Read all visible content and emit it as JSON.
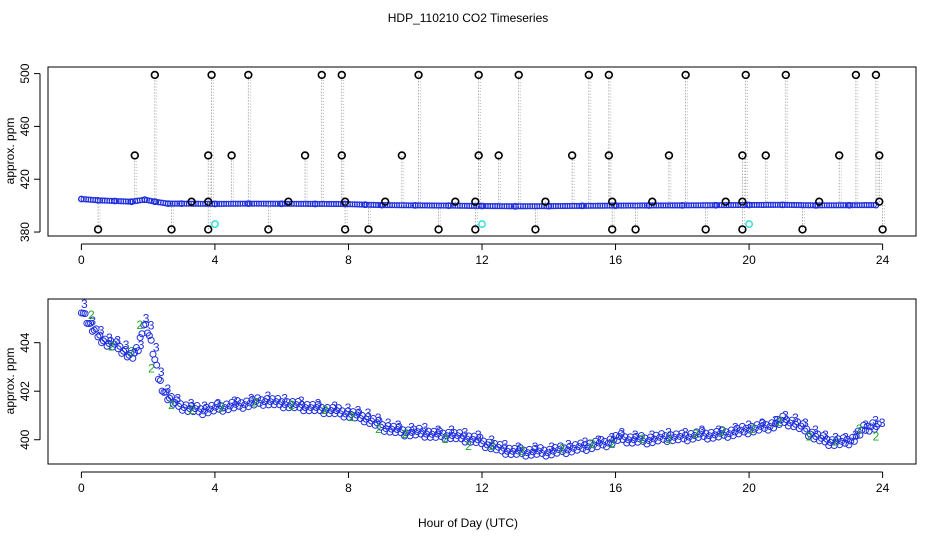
{
  "figure": {
    "title": "HDP_110210  CO2 Timeseries",
    "xlabel": "Hour of Day (UTC)"
  },
  "colors": {
    "axis": "#000000",
    "raw_points": "#000000",
    "spike_lines": "#999999",
    "series_blue": "#1f2fdc",
    "series_green": "#22aa22",
    "cyan_points": "#33dddd"
  },
  "chart_data": [
    {
      "type": "scatter",
      "panel": "top",
      "ylabel": "approx. ppm",
      "xlim": [
        -1,
        25
      ],
      "ylim": [
        377,
        505
      ],
      "xticks": [
        0,
        4,
        8,
        12,
        16,
        20,
        24
      ],
      "yticks": [
        380,
        420,
        460,
        500
      ],
      "baseline": {
        "x": [
          0,
          0.5,
          1.0,
          1.5,
          1.9,
          2.2,
          2.6,
          3.0,
          4.0,
          5.0,
          6.0,
          7.0,
          7.9,
          8.5,
          9.0,
          10.0,
          11.0,
          12.0,
          13.0,
          14.0,
          15.0,
          16.0,
          17.0,
          18.0,
          19.0,
          20.0,
          21.0,
          22.0,
          23.0,
          23.8
        ],
        "y": [
          405,
          404,
          403.5,
          403,
          404.5,
          403,
          401.5,
          401.5,
          401.3,
          401.5,
          401.4,
          401.3,
          401.2,
          400.7,
          400.4,
          400.2,
          400,
          399.7,
          399.5,
          399.6,
          399.8,
          400,
          400.1,
          400.2,
          400.3,
          400.5,
          400.6,
          400.2,
          400.3,
          400.4
        ]
      },
      "spikes_high": {
        "x": [
          2.2,
          3.9,
          5.0,
          7.2,
          7.8,
          10.1,
          11.9,
          13.1,
          15.2,
          15.8,
          18.1,
          19.9,
          21.1,
          23.2,
          23.8
        ],
        "y": [
          499,
          499,
          499,
          499,
          499,
          499,
          499,
          499,
          499,
          499,
          499,
          499,
          499,
          499,
          499
        ]
      },
      "spikes_mid": {
        "x": [
          1.6,
          3.8,
          4.5,
          6.7,
          7.8,
          9.6,
          11.9,
          12.5,
          14.7,
          15.8,
          17.6,
          19.8,
          20.5,
          22.7,
          23.9
        ],
        "y": [
          438,
          438,
          438,
          438,
          438,
          438,
          438,
          438,
          438,
          438,
          438,
          438,
          438,
          438,
          438
        ]
      },
      "spikes_small": {
        "x": [
          3.3,
          3.8,
          6.2,
          7.9,
          9.1,
          11.2,
          11.8,
          13.9,
          15.9,
          17.1,
          19.3,
          19.8,
          22.1,
          23.9
        ],
        "y": [
          403,
          403,
          403,
          403,
          403,
          403,
          403,
          403,
          403,
          403,
          403,
          403,
          403,
          403
        ]
      },
      "spikes_low": {
        "x": [
          0.5,
          2.7,
          3.8,
          5.6,
          7.9,
          8.6,
          10.7,
          11.8,
          13.6,
          15.9,
          16.6,
          18.7,
          19.8,
          21.6,
          24.0
        ],
        "y": [
          382,
          382,
          382,
          382,
          382,
          382,
          382,
          382,
          382,
          382,
          382,
          382,
          382,
          382,
          382
        ]
      },
      "cyan_points": {
        "x": [
          4.0,
          12.0,
          20.0
        ],
        "y": [
          386,
          386,
          386
        ]
      }
    },
    {
      "type": "scatter",
      "panel": "bottom",
      "ylabel": "approx. ppm",
      "xlim": [
        -1,
        25
      ],
      "ylim": [
        399.0,
        405.8
      ],
      "xticks": [
        0,
        4,
        8,
        12,
        16,
        20,
        24
      ],
      "yticks": [
        400,
        402,
        404
      ],
      "series": [
        {
          "marker": "3",
          "x": [
            0,
            0.25,
            0.5,
            0.75,
            1.0,
            1.25,
            1.5,
            1.7,
            1.85,
            2.0,
            2.15,
            2.3,
            2.5,
            2.8,
            3.2,
            3.6,
            4.0,
            4.5,
            5.0,
            5.5,
            6.0,
            6.5,
            7.0,
            7.5,
            7.9,
            8.2,
            8.5,
            8.8,
            9.1,
            9.4,
            9.8,
            10.2,
            10.6,
            11.0,
            11.4,
            11.8,
            12.2,
            12.6,
            13.0,
            13.5,
            14.0,
            14.5,
            15.0,
            15.4,
            15.8,
            16.1,
            16.5,
            17.0,
            17.5,
            18.0,
            18.5,
            19.0,
            19.5,
            19.9,
            20.3,
            20.7,
            21.0,
            21.3,
            21.6,
            21.9,
            22.2,
            22.5,
            22.8,
            23.1,
            23.4,
            23.7,
            23.9
          ],
          "y": [
            405.4,
            404.7,
            404.3,
            404.0,
            403.9,
            403.7,
            403.4,
            403.7,
            404.8,
            404.5,
            403.6,
            402.6,
            401.9,
            401.5,
            401.3,
            401.2,
            401.3,
            401.4,
            401.5,
            401.6,
            401.5,
            401.4,
            401.3,
            401.2,
            401.1,
            401.0,
            400.9,
            400.7,
            400.5,
            400.4,
            400.3,
            400.3,
            400.2,
            400.2,
            400.1,
            400.0,
            399.8,
            399.6,
            399.5,
            399.5,
            399.5,
            399.6,
            399.7,
            399.8,
            399.9,
            400.1,
            400.0,
            400.0,
            400.1,
            400.1,
            400.2,
            400.2,
            400.3,
            400.4,
            400.5,
            400.6,
            400.8,
            400.7,
            400.5,
            400.2,
            400.0,
            399.9,
            399.9,
            400.0,
            400.4,
            400.6,
            400.5
          ]
        },
        {
          "marker": "2",
          "x": [
            0.3,
            0.9,
            1.5,
            1.75,
            2.1,
            2.7,
            3.3,
            4.2,
            5.2,
            6.3,
            7.3,
            8.1,
            8.9,
            9.7,
            10.9,
            11.6,
            12.3,
            13.2,
            14.4,
            15.3,
            15.9,
            16.8,
            17.6,
            18.4,
            19.2,
            20.1,
            20.9,
            21.8,
            22.6,
            23.3,
            23.8
          ],
          "y": [
            405.1,
            403.8,
            403.6,
            404.7,
            402.9,
            401.4,
            401.2,
            401.3,
            401.5,
            401.4,
            401.2,
            400.9,
            400.4,
            400.2,
            400.0,
            399.7,
            399.7,
            399.5,
            399.6,
            399.8,
            399.8,
            400.0,
            400.0,
            400.2,
            400.3,
            400.4,
            400.7,
            400.1,
            399.9,
            400.4,
            400.1
          ]
        }
      ]
    }
  ]
}
